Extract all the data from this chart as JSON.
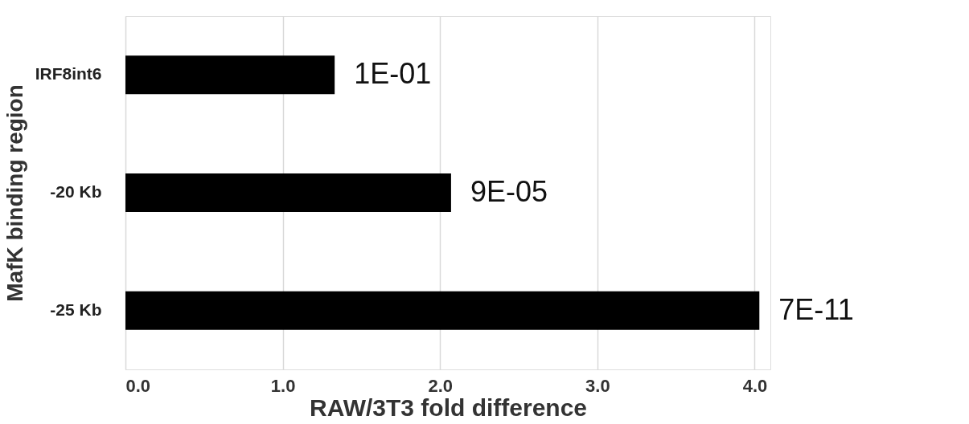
{
  "chart_data": {
    "type": "bar",
    "orientation": "horizontal",
    "categories": [
      "IRF8int6",
      "-20 Kb",
      "-25 Kb"
    ],
    "values": [
      1.33,
      2.07,
      4.03
    ],
    "color": "#000000",
    "annotations": [
      {
        "text": "1E-01",
        "x": 1.33,
        "y": "IRF8int6"
      },
      {
        "text": "9E-05",
        "x": 2.07,
        "y": "-20 Kb"
      },
      {
        "text": "7E-11",
        "x": 4.03,
        "y": "-25 Kb"
      }
    ],
    "xlabel": "RAW/3T3 fold difference",
    "ylabel": "MafK binding region",
    "xlim": [
      0,
      4.1
    ],
    "xticks": [
      {
        "value": 0,
        "label": "0.0"
      },
      {
        "value": 1,
        "label": "1.0"
      },
      {
        "value": 2,
        "label": "2.0"
      },
      {
        "value": 3,
        "label": "3.0"
      },
      {
        "value": 4,
        "label": "4.0"
      }
    ],
    "grid": "x"
  }
}
